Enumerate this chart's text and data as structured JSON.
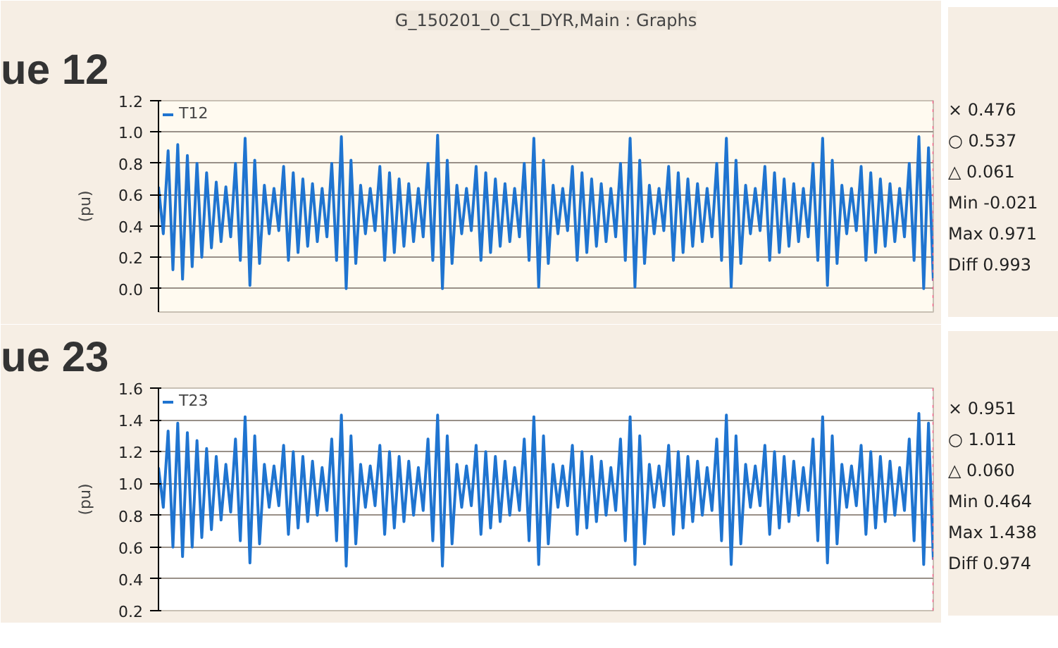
{
  "chart_data": [
    {
      "type": "line",
      "title": "G_150201_0_C1_DYR,Main : Graphs",
      "ylabel": "(pu)",
      "legend": "top left",
      "grid": "y",
      "tick_labels": "y",
      "categories": [
        null,
        null,
        null,
        null,
        null,
        null,
        null,
        null,
        null,
        null,
        null,
        null,
        null,
        null,
        null,
        null,
        null,
        null,
        null,
        null,
        null,
        null,
        null,
        null,
        null,
        null,
        null,
        null,
        null,
        null,
        null,
        null,
        null,
        null,
        null,
        null,
        null,
        null,
        null,
        null,
        null,
        null,
        null,
        null,
        null,
        null,
        null,
        null,
        null,
        null,
        null,
        null,
        null,
        null,
        null,
        null,
        null,
        null,
        null,
        null,
        null,
        null,
        null,
        null,
        null,
        null,
        null,
        null,
        null,
        null,
        null,
        null,
        null,
        null,
        null,
        null,
        null,
        null,
        null,
        null,
        null,
        null,
        null,
        null,
        null,
        null,
        null,
        null,
        null,
        null,
        null,
        null,
        null,
        null,
        null,
        null,
        null,
        null,
        null,
        null,
        null,
        null,
        null,
        null,
        null,
        null,
        null,
        null,
        null,
        null,
        null,
        null,
        null,
        null,
        null,
        null,
        null,
        null,
        null,
        null,
        null,
        null,
        null,
        null,
        null,
        null,
        null,
        null,
        null,
        null,
        null,
        null,
        null,
        null,
        null,
        null,
        null,
        null,
        null,
        null,
        null,
        null,
        null,
        null,
        null,
        null,
        null,
        null,
        null,
        null,
        null,
        null,
        null,
        null,
        null,
        null,
        null,
        null,
        null,
        null,
        null,
        null
      ],
      "ylim": [
        -0.15,
        1.2
      ],
      "yticks": [
        {
          "value": 0.0,
          "label": "0.0"
        },
        {
          "value": 0.2,
          "label": "0.2"
        },
        {
          "value": 0.4,
          "label": "0.4"
        },
        {
          "value": 0.6,
          "label": "0.6"
        },
        {
          "value": 0.8,
          "label": "0.8"
        },
        {
          "value": 1.0,
          "label": "1.0"
        },
        {
          "value": 1.2,
          "label": "1.2"
        }
      ],
      "ref_lines": [
        {
          "axis": "x",
          "value": null,
          "color": "#ff5c8a",
          "line_style": "dotted"
        }
      ],
      "annotations": [
        "ue 12",
        "× 0.476",
        "○ 0.537",
        "△ 0.061",
        "Min -0.021",
        "Max 0.971",
        "Diff 0.993"
      ],
      "series": [
        {
          "name": "T12",
          "color": "#1f74d0",
          "values": [
            0.65,
            0.35,
            0.88,
            0.12,
            0.92,
            0.06,
            0.85,
            0.14,
            0.8,
            0.2,
            0.74,
            0.26,
            0.68,
            0.3,
            0.65,
            0.33,
            0.8,
            0.18,
            0.96,
            0.02,
            0.82,
            0.16,
            0.66,
            0.35,
            0.64,
            0.37,
            0.78,
            0.18,
            0.74,
            0.23,
            0.7,
            0.27,
            0.67,
            0.3,
            0.64,
            0.33,
            0.8,
            0.18,
            0.97,
            0.0,
            0.82,
            0.16,
            0.66,
            0.35,
            0.64,
            0.37,
            0.78,
            0.18,
            0.74,
            0.23,
            0.7,
            0.27,
            0.67,
            0.3,
            0.64,
            0.33,
            0.8,
            0.18,
            0.98,
            0.0,
            0.82,
            0.16,
            0.66,
            0.35,
            0.64,
            0.37,
            0.78,
            0.18,
            0.74,
            0.23,
            0.7,
            0.27,
            0.67,
            0.3,
            0.64,
            0.33,
            0.8,
            0.18,
            0.96,
            0.01,
            0.82,
            0.16,
            0.66,
            0.35,
            0.64,
            0.37,
            0.78,
            0.18,
            0.74,
            0.23,
            0.7,
            0.27,
            0.67,
            0.3,
            0.64,
            0.33,
            0.8,
            0.18,
            0.96,
            0.01,
            0.82,
            0.16,
            0.66,
            0.35,
            0.64,
            0.37,
            0.78,
            0.18,
            0.74,
            0.23,
            0.7,
            0.27,
            0.67,
            0.3,
            0.64,
            0.33,
            0.8,
            0.18,
            0.96,
            0.01,
            0.82,
            0.16,
            0.66,
            0.35,
            0.64,
            0.37,
            0.78,
            0.18,
            0.74,
            0.23,
            0.7,
            0.27,
            0.67,
            0.3,
            0.64,
            0.33,
            0.8,
            0.18,
            0.96,
            0.02,
            0.82,
            0.16,
            0.66,
            0.35,
            0.64,
            0.37,
            0.78,
            0.18,
            0.74,
            0.23,
            0.7,
            0.27,
            0.67,
            0.3,
            0.64,
            0.33,
            0.8,
            0.18,
            0.97,
            0.0,
            0.9,
            0.05
          ]
        }
      ]
    },
    {
      "type": "line",
      "ylabel": "(pu)",
      "legend": "top left",
      "grid": "y",
      "tick_labels": "y",
      "categories": [
        null,
        null,
        null,
        null,
        null,
        null,
        null,
        null,
        null,
        null,
        null,
        null,
        null,
        null,
        null,
        null,
        null,
        null,
        null,
        null,
        null,
        null,
        null,
        null,
        null,
        null,
        null,
        null,
        null,
        null,
        null,
        null,
        null,
        null,
        null,
        null,
        null,
        null,
        null,
        null,
        null,
        null,
        null,
        null,
        null,
        null,
        null,
        null,
        null,
        null,
        null,
        null,
        null,
        null,
        null,
        null,
        null,
        null,
        null,
        null,
        null,
        null,
        null,
        null,
        null,
        null,
        null,
        null,
        null,
        null,
        null,
        null,
        null,
        null,
        null,
        null,
        null,
        null,
        null,
        null,
        null,
        null,
        null,
        null,
        null,
        null,
        null,
        null,
        null,
        null,
        null,
        null,
        null,
        null,
        null,
        null,
        null,
        null,
        null,
        null,
        null,
        null,
        null,
        null,
        null,
        null,
        null,
        null,
        null,
        null,
        null,
        null,
        null,
        null,
        null,
        null,
        null,
        null,
        null,
        null,
        null,
        null,
        null,
        null,
        null,
        null,
        null,
        null,
        null,
        null,
        null,
        null,
        null,
        null,
        null,
        null,
        null,
        null,
        null,
        null,
        null,
        null,
        null,
        null,
        null,
        null,
        null,
        null,
        null,
        null,
        null,
        null,
        null,
        null,
        null,
        null,
        null,
        null,
        null,
        null,
        null,
        null
      ],
      "ylim": [
        0.2,
        1.6
      ],
      "yticks": [
        {
          "value": 0.2,
          "label": "0.2"
        },
        {
          "value": 0.4,
          "label": "0.4"
        },
        {
          "value": 0.6,
          "label": "0.6"
        },
        {
          "value": 0.8,
          "label": "0.8"
        },
        {
          "value": 1.0,
          "label": "1.0"
        },
        {
          "value": 1.2,
          "label": "1.2"
        },
        {
          "value": 1.4,
          "label": "1.4"
        },
        {
          "value": 1.6,
          "label": "1.6"
        }
      ],
      "ref_lines": [
        {
          "axis": "x",
          "value": null,
          "color": "#ff5c8a",
          "line_style": "dotted"
        }
      ],
      "annotations": [
        "ue 23",
        "× 0.951",
        "○ 1.011",
        "△ 0.060",
        "Min 0.464",
        "Max 1.438",
        "Diff 0.974"
      ],
      "series": [
        {
          "name": "T23",
          "color": "#1f74d0",
          "values": [
            1.1,
            0.85,
            1.33,
            0.6,
            1.38,
            0.54,
            1.32,
            0.6,
            1.27,
            0.66,
            1.22,
            0.71,
            1.17,
            0.77,
            1.12,
            0.82,
            1.28,
            0.64,
            1.42,
            0.5,
            1.3,
            0.62,
            1.12,
            0.85,
            1.11,
            0.86,
            1.24,
            0.68,
            1.2,
            0.72,
            1.17,
            0.76,
            1.14,
            0.8,
            1.1,
            0.83,
            1.28,
            0.64,
            1.43,
            0.48,
            1.3,
            0.62,
            1.12,
            0.85,
            1.11,
            0.86,
            1.24,
            0.68,
            1.2,
            0.72,
            1.17,
            0.76,
            1.14,
            0.8,
            1.1,
            0.83,
            1.28,
            0.64,
            1.43,
            0.48,
            1.3,
            0.62,
            1.12,
            0.85,
            1.11,
            0.86,
            1.24,
            0.68,
            1.2,
            0.72,
            1.17,
            0.76,
            1.14,
            0.8,
            1.1,
            0.83,
            1.28,
            0.64,
            1.42,
            0.49,
            1.3,
            0.62,
            1.12,
            0.85,
            1.11,
            0.86,
            1.24,
            0.68,
            1.2,
            0.72,
            1.17,
            0.76,
            1.14,
            0.8,
            1.1,
            0.83,
            1.28,
            0.64,
            1.42,
            0.49,
            1.3,
            0.62,
            1.12,
            0.85,
            1.11,
            0.86,
            1.24,
            0.68,
            1.2,
            0.72,
            1.17,
            0.76,
            1.14,
            0.8,
            1.1,
            0.83,
            1.28,
            0.64,
            1.43,
            0.49,
            1.3,
            0.62,
            1.12,
            0.85,
            1.11,
            0.86,
            1.24,
            0.68,
            1.2,
            0.72,
            1.17,
            0.76,
            1.14,
            0.8,
            1.1,
            0.83,
            1.28,
            0.64,
            1.42,
            0.5,
            1.3,
            0.62,
            1.12,
            0.85,
            1.11,
            0.86,
            1.24,
            0.68,
            1.2,
            0.72,
            1.17,
            0.76,
            1.14,
            0.8,
            1.1,
            0.83,
            1.28,
            0.64,
            1.44,
            0.49,
            1.38,
            0.52
          ]
        }
      ]
    }
  ]
}
